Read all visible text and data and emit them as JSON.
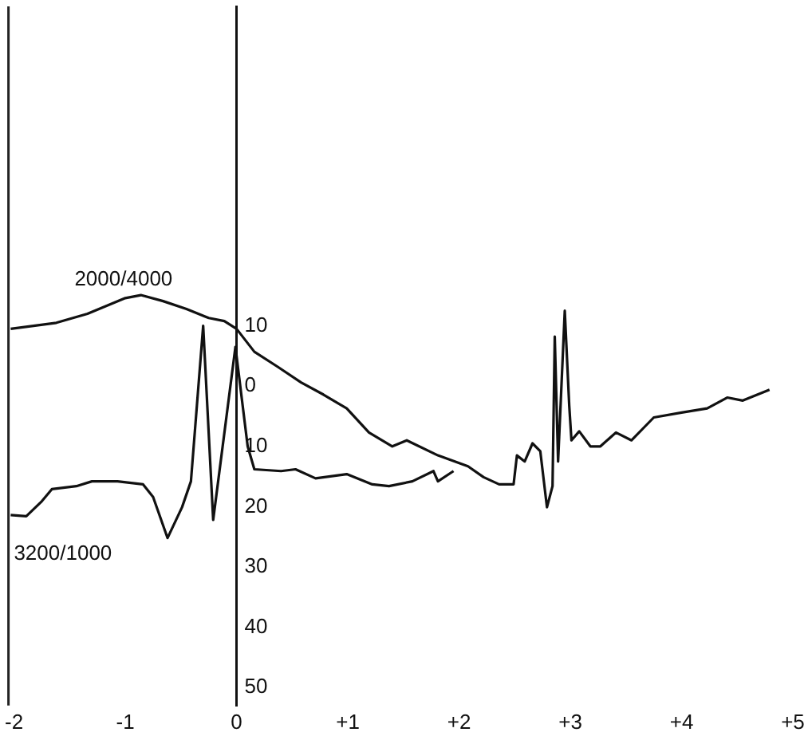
{
  "chart_data": {
    "type": "line",
    "xlim": [
      -2.05,
      5
    ],
    "xticks": [
      -2,
      -1,
      0,
      {
        "value": 1,
        "label": "+1"
      },
      {
        "value": 2,
        "label": "+2"
      },
      {
        "value": 3,
        "label": "+3"
      },
      {
        "value": 4,
        "label": "+4"
      },
      {
        "value": 5,
        "label": "+5"
      }
    ],
    "ylim": [
      53,
      -63
    ],
    "yticks": [
      {
        "value": -10,
        "label": "10"
      },
      0,
      10,
      20,
      30,
      40,
      50
    ],
    "grid": false,
    "legend": false,
    "marker": "none",
    "line_style": "solid",
    "series": [
      {
        "name": "2000/4000",
        "color": "#111111",
        "x": [
          -2.03,
          -1.62,
          -1.34,
          -1.0,
          -0.86,
          -0.66,
          -0.45,
          -0.25,
          -0.11,
          0,
          0.16,
          0.37,
          0.58,
          0.78,
          0.99,
          1.19,
          1.4,
          1.53,
          1.81,
          2.08,
          2.22,
          2.36,
          2.49,
          2.52,
          2.59,
          2.66,
          2.73,
          2.79,
          2.84,
          2.86,
          2.89,
          2.95,
          2.99,
          3.01,
          3.08,
          3.18,
          3.27,
          3.41,
          3.55,
          3.75,
          4.0,
          4.23,
          4.41,
          4.55,
          4.79
        ],
        "values": [
          -9.5,
          -10.5,
          -12.0,
          -14.6,
          -15.1,
          -14.1,
          -12.8,
          -11.3,
          -10.8,
          -9.5,
          -5.7,
          -3.2,
          -0.6,
          1.4,
          3.7,
          7.7,
          10.0,
          9.0,
          11.5,
          13.3,
          15.1,
          16.3,
          16.3,
          11.5,
          12.5,
          9.5,
          10.8,
          20.1,
          16.6,
          -8.2,
          12.5,
          -12.5,
          3.2,
          9.0,
          7.5,
          10.0,
          10.0,
          7.7,
          9.0,
          5.2,
          4.4,
          3.7,
          1.9,
          2.4,
          0.6
        ]
      },
      {
        "name": "3200/1000",
        "color": "#111111",
        "x": [
          -2.03,
          -1.89,
          -1.75,
          -1.66,
          -1.44,
          -1.3,
          -1.07,
          -0.84,
          -0.75,
          -0.62,
          -0.49,
          -0.41,
          -0.3,
          -0.21,
          -0.01,
          0.1,
          0.16,
          0.4,
          0.53,
          0.71,
          0.99,
          1.22,
          1.37,
          1.58,
          1.77,
          1.81,
          1.95
        ],
        "values": [
          21.4,
          21.6,
          19.1,
          17.1,
          16.6,
          15.8,
          15.8,
          16.3,
          18.4,
          25.2,
          20.1,
          15.8,
          -10.0,
          22.2,
          -6.5,
          10.0,
          13.8,
          14.1,
          13.8,
          15.3,
          14.6,
          16.3,
          16.6,
          15.8,
          14.1,
          15.8,
          14.1
        ]
      }
    ]
  }
}
